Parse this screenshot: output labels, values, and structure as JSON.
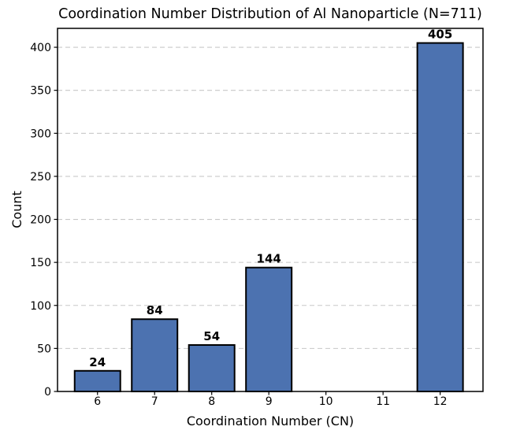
{
  "chart_data": {
    "type": "bar",
    "title": "Coordination Number Distribution of Al Nanoparticle (N=711)",
    "xlabel": "Coordination Number (CN)",
    "ylabel": "Count",
    "categories": [
      "6",
      "7",
      "8",
      "9",
      "10",
      "11",
      "12"
    ],
    "values": [
      24,
      84,
      54,
      144,
      0,
      0,
      405
    ],
    "bar_labels": [
      "24",
      "84",
      "54",
      "144",
      "",
      "",
      "405"
    ],
    "bar_width": 0.8,
    "xlim": [
      5.3,
      12.75
    ],
    "ylim": [
      0,
      422
    ],
    "yticks": [
      0,
      50,
      100,
      150,
      200,
      250,
      300,
      350,
      400
    ],
    "grid": {
      "axis": "y",
      "linestyle": "dashed",
      "color": "#c8c8c8",
      "on": true
    },
    "legend": "none",
    "colors": {
      "bar_fill": "#4C72B0",
      "bar_edge": "#000000",
      "axis": "#000000",
      "text": "#000000",
      "background": "#ffffff"
    }
  }
}
